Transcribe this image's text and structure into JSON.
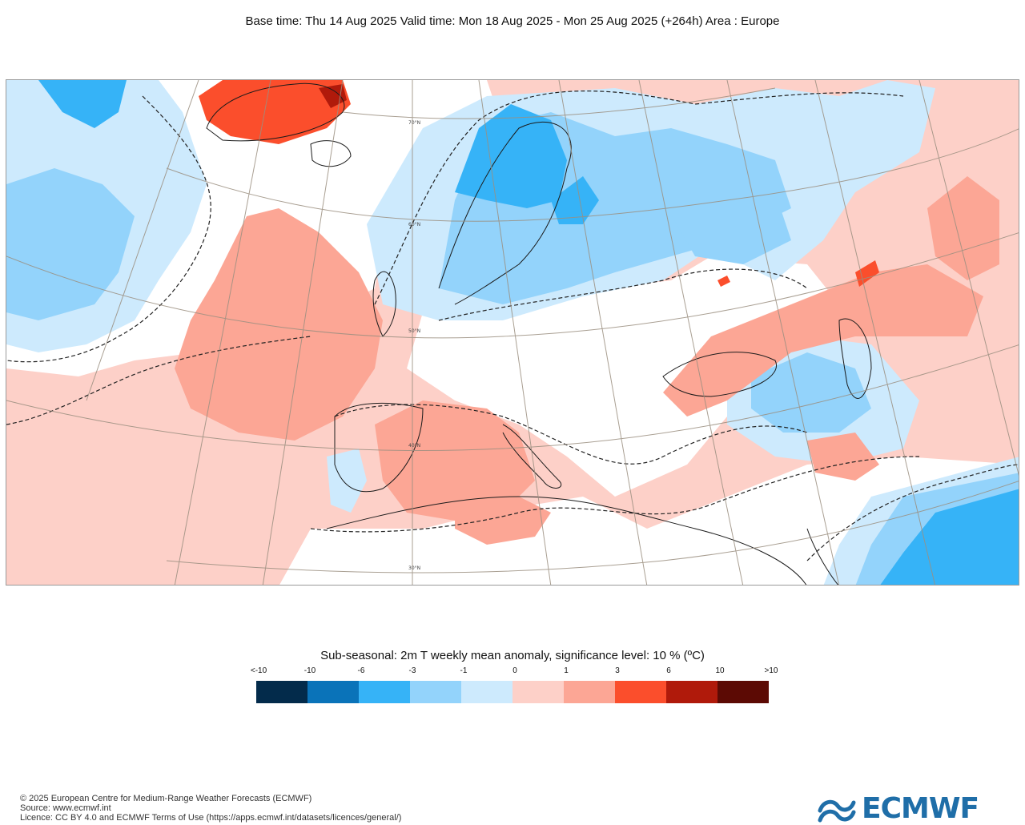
{
  "header": {
    "text": "Base time: Thu 14 Aug 2025 Valid time: Mon 18 Aug 2025 - Mon 25 Aug 2025 (+264h) Area : Europe"
  },
  "map": {
    "region": "Europe",
    "lat_labels": [
      "70°N",
      "60°N",
      "50°N",
      "40°N",
      "30°N"
    ],
    "palette": {
      "very_warm": "#5c0a04",
      "hot": "#b01a0b",
      "warm_strong": "#fb4e2c",
      "warm_mid": "#fca695",
      "warm_weak": "#fdd0c8",
      "cool_weak": "#cdeafd",
      "cool_mid": "#93d3fb",
      "cool_strong": "#36b3f7",
      "cold": "#0a73b9",
      "very_cold": "#032b4b",
      "contour": "#222222",
      "graticule": "#9b8f80"
    }
  },
  "legend": {
    "title": "Sub-seasonal: 2m T weekly mean anomaly, significance level: 10 % (ºC)",
    "labels": [
      "<-10",
      "-10",
      "-6",
      "-3",
      "-1",
      "0",
      "1",
      "3",
      "6",
      "10",
      ">10"
    ],
    "colors": [
      "#032b4b",
      "#0a73b9",
      "#36b3f7",
      "#93d3fb",
      "#cdeafd",
      "#fdd0c8",
      "#fca695",
      "#fb4e2c",
      "#b01a0b",
      "#5c0a04"
    ]
  },
  "footer": {
    "copyright": "© 2025 European Centre for Medium-Range Weather Forecasts (ECMWF)",
    "source": "Source: www.ecmwf.int",
    "licence": "Licence: CC BY 4.0 and ECMWF Terms of Use (https://apps.ecmwf.int/datasets/licences/general/)"
  },
  "logo": {
    "text": "ECMWF",
    "color": "#1f6ea8",
    "icon": "ecmwf-logo-icon"
  }
}
